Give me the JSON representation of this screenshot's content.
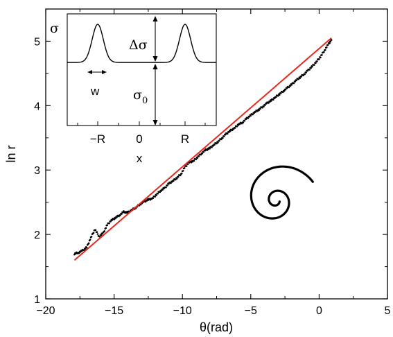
{
  "chart_data": {
    "type": "scatter",
    "xlabel": "θ(rad)",
    "ylabel": "ln r",
    "xlim": [
      -20,
      5
    ],
    "ylim": [
      1,
      5.5
    ],
    "x_ticks": [
      "−20",
      "−15",
      "−10",
      "−5",
      "0",
      "5"
    ],
    "y_ticks": [
      "1",
      "2",
      "3",
      "4",
      "5"
    ],
    "series": [
      {
        "type": "scatter",
        "color": "#000000",
        "x": [
          -17.9,
          -17.6,
          -17.3,
          -17.0,
          -16.7,
          -16.4,
          -16.1,
          -15.8,
          -15.5,
          -15.2,
          -14.9,
          -14.6,
          -14.3,
          -14.0,
          -13.7,
          -13.4,
          -13.1,
          -12.8,
          -12.5,
          -12.2,
          -11.9,
          -11.6,
          -11.3,
          -11.0,
          -10.7,
          -10.4,
          -10.1,
          -9.8,
          -9.5,
          -9.2,
          -8.9,
          -8.6,
          -8.3,
          -8.0,
          -7.7,
          -7.4,
          -7.1,
          -6.8,
          -6.5,
          -6.2,
          -5.9,
          -5.6,
          -5.3,
          -5.0,
          -4.7,
          -4.4,
          -4.1,
          -3.8,
          -3.5,
          -3.2,
          -2.9,
          -2.6,
          -2.3,
          -2.0,
          -1.7,
          -1.4,
          -1.1,
          -0.8,
          -0.5,
          -0.2,
          0.1,
          0.4,
          0.7,
          0.9
        ],
        "y": [
          1.7,
          1.72,
          1.75,
          1.8,
          1.95,
          2.08,
          1.97,
          2.02,
          2.15,
          2.22,
          2.26,
          2.3,
          2.35,
          2.34,
          2.38,
          2.42,
          2.47,
          2.51,
          2.54,
          2.56,
          2.62,
          2.68,
          2.72,
          2.79,
          2.83,
          2.88,
          2.94,
          3.05,
          3.12,
          3.14,
          3.2,
          3.26,
          3.31,
          3.34,
          3.39,
          3.44,
          3.5,
          3.56,
          3.61,
          3.65,
          3.71,
          3.74,
          3.8,
          3.85,
          3.9,
          3.94,
          3.99,
          4.04,
          4.08,
          4.13,
          4.18,
          4.23,
          4.28,
          4.33,
          4.39,
          4.44,
          4.49,
          4.55,
          4.61,
          4.68,
          4.76,
          4.86,
          4.96,
          5.02
        ]
      },
      {
        "type": "line",
        "color": "#e8261c",
        "x": [
          -17.9,
          0.9
        ],
        "y": [
          1.6,
          5.05
        ]
      }
    ],
    "spiral": {
      "type": "line",
      "color": "#000000",
      "note": ""
    },
    "inset": {
      "xlabel": "x",
      "ylabel": "σ",
      "x_ticks": [
        "−R",
        "0",
        "R"
      ],
      "annotations": [
        "Δσ",
        "σ0",
        "w"
      ]
    }
  }
}
